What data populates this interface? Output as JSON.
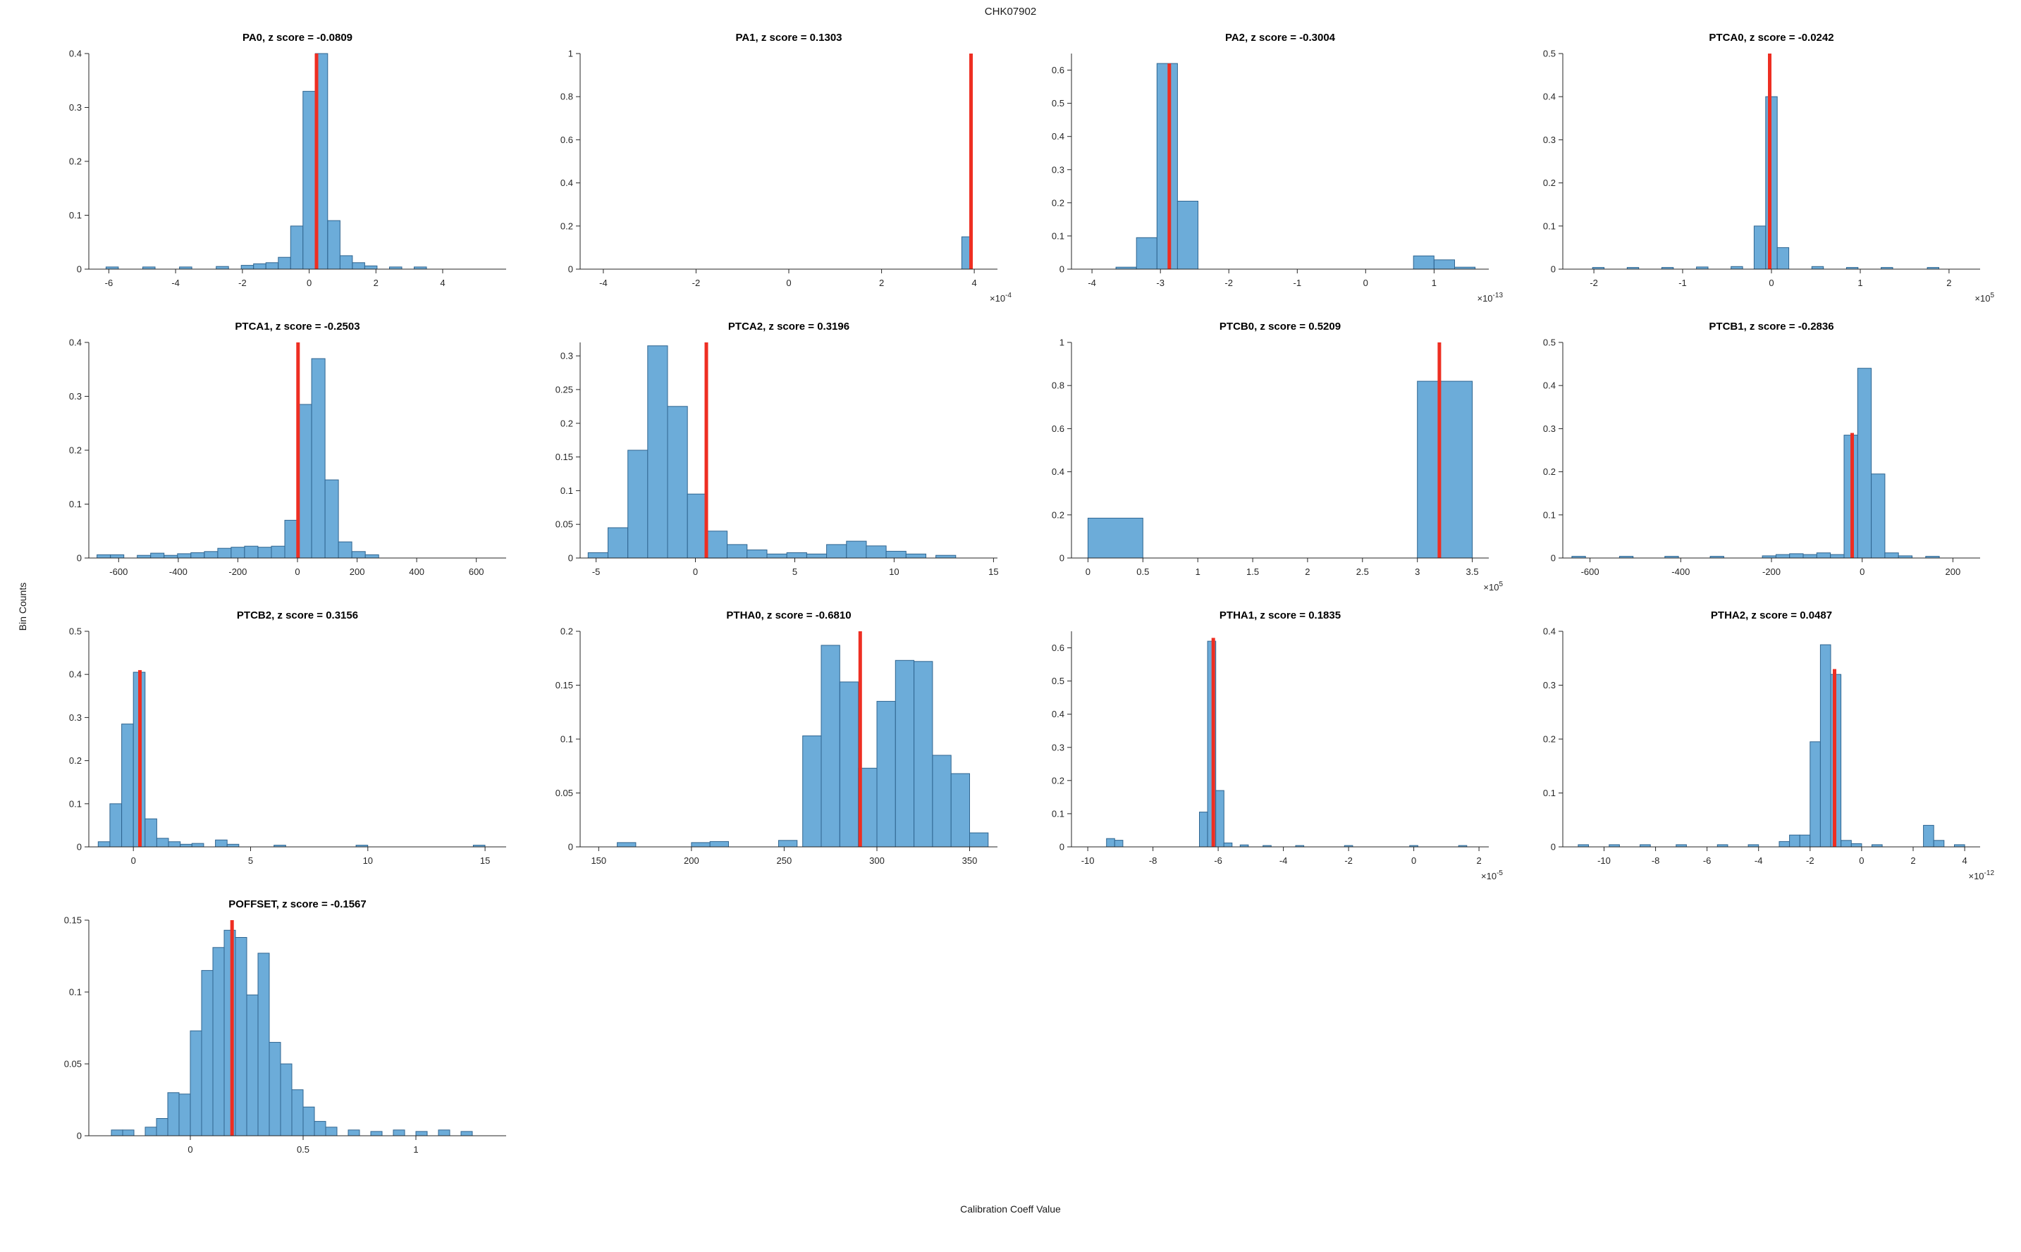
{
  "figure": {
    "title": "CHK07902",
    "xlabel": "Calibration Coeff Value",
    "ylabel": "Bin Counts"
  },
  "colors": {
    "bar_fill": "#6cacd9",
    "bar_edge": "#2f6590",
    "marker": "#ee2e22",
    "axis": "#262626"
  },
  "chart_data": [
    {
      "id": "PA0",
      "type": "bar",
      "title": "PA0, z score = -0.0809",
      "xlim": [
        -6.6,
        5.9
      ],
      "ylim": [
        0,
        0.4
      ],
      "xticks": [
        -6,
        -4,
        -2,
        0,
        2,
        4
      ],
      "yticks": [
        0,
        0.1,
        0.2,
        0.3,
        0.4
      ],
      "x_exponent": null,
      "bin_width": 0.37,
      "bars": [
        [
          -5.9,
          0.004
        ],
        [
          -4.8,
          0.004
        ],
        [
          -3.7,
          0.004
        ],
        [
          -2.6,
          0.005
        ],
        [
          -1.85,
          0.007
        ],
        [
          -1.48,
          0.01
        ],
        [
          -1.11,
          0.012
        ],
        [
          -0.74,
          0.022
        ],
        [
          -0.37,
          0.08
        ],
        [
          0,
          0.33
        ],
        [
          0.37,
          0.4
        ],
        [
          0.74,
          0.09
        ],
        [
          1.11,
          0.025
        ],
        [
          1.48,
          0.012
        ],
        [
          1.85,
          0.006
        ],
        [
          2.59,
          0.004
        ],
        [
          3.33,
          0.004
        ]
      ],
      "red_line": {
        "x": 0.22,
        "top": 0.4
      }
    },
    {
      "id": "PA1",
      "type": "bar",
      "title": "PA1, z score = 0.1303",
      "xlim": [
        -4.5,
        4.5
      ],
      "ylim": [
        0,
        1
      ],
      "xticks": [
        -4,
        -2,
        0,
        2,
        4
      ],
      "yticks": [
        0,
        0.2,
        0.4,
        0.6,
        0.8,
        1
      ],
      "x_exponent": -4,
      "bin_width": 0.18,
      "bars": [
        [
          3.82,
          0.15
        ]
      ],
      "red_line": {
        "x": 3.93,
        "top": 1.0
      }
    },
    {
      "id": "PA2",
      "type": "bar",
      "title": "PA2, z score = -0.3004",
      "xlim": [
        -4.3,
        1.8
      ],
      "ylim": [
        0,
        0.65
      ],
      "xticks": [
        -4,
        -3,
        -2,
        -1,
        0,
        1
      ],
      "yticks": [
        0,
        0.1,
        0.2,
        0.3,
        0.4,
        0.5,
        0.6
      ],
      "x_exponent": -13,
      "bin_width": 0.3,
      "bars": [
        [
          -3.5,
          0.006
        ],
        [
          -3.2,
          0.095
        ],
        [
          -2.9,
          0.62
        ],
        [
          -2.6,
          0.205
        ],
        [
          0.85,
          0.04
        ],
        [
          1.15,
          0.028
        ],
        [
          1.45,
          0.006
        ]
      ],
      "red_line": {
        "x": -2.87,
        "top": 0.62
      }
    },
    {
      "id": "PTCA0",
      "type": "bar",
      "title": "PTCA0, z score = -0.0242",
      "xlim": [
        -2.35,
        2.35
      ],
      "ylim": [
        0,
        0.5
      ],
      "xticks": [
        -2,
        -1,
        0,
        1,
        2
      ],
      "yticks": [
        0,
        0.1,
        0.2,
        0.3,
        0.4,
        0.5
      ],
      "x_exponent": 5,
      "bin_width": 0.13,
      "bars": [
        [
          -1.95,
          0.004
        ],
        [
          -1.56,
          0.004
        ],
        [
          -1.17,
          0.004
        ],
        [
          -0.78,
          0.005
        ],
        [
          -0.39,
          0.006
        ],
        [
          -0.13,
          0.1
        ],
        [
          0,
          0.4
        ],
        [
          0.13,
          0.05
        ],
        [
          0.52,
          0.006
        ],
        [
          0.91,
          0.004
        ],
        [
          1.3,
          0.004
        ],
        [
          1.82,
          0.004
        ]
      ],
      "red_line": {
        "x": -0.02,
        "top": 0.5
      }
    },
    {
      "id": "PTCA1",
      "type": "bar",
      "title": "PTCA1, z score = -0.2503",
      "xlim": [
        -700,
        700
      ],
      "ylim": [
        0,
        0.4
      ],
      "xticks": [
        -600,
        -400,
        -200,
        0,
        200,
        400,
        600
      ],
      "yticks": [
        0,
        0.1,
        0.2,
        0.3,
        0.4
      ],
      "x_exponent": null,
      "bin_width": 45,
      "bars": [
        [
          -650,
          0.006
        ],
        [
          -605,
          0.006
        ],
        [
          -515,
          0.005
        ],
        [
          -470,
          0.009
        ],
        [
          -425,
          0.005
        ],
        [
          -380,
          0.008
        ],
        [
          -335,
          0.01
        ],
        [
          -290,
          0.012
        ],
        [
          -245,
          0.018
        ],
        [
          -200,
          0.02
        ],
        [
          -155,
          0.022
        ],
        [
          -110,
          0.02
        ],
        [
          -65,
          0.022
        ],
        [
          -20,
          0.07
        ],
        [
          25,
          0.285
        ],
        [
          70,
          0.37
        ],
        [
          115,
          0.145
        ],
        [
          160,
          0.03
        ],
        [
          205,
          0.012
        ],
        [
          250,
          0.006
        ]
      ],
      "red_line": {
        "x": 2,
        "top": 0.4
      }
    },
    {
      "id": "PTCA2",
      "type": "bar",
      "title": "PTCA2, z score = 0.3196",
      "xlim": [
        -5.8,
        15.2
      ],
      "ylim": [
        0,
        0.32
      ],
      "xticks": [
        -5,
        0,
        5,
        10,
        15
      ],
      "yticks": [
        0,
        0.05,
        0.1,
        0.15,
        0.2,
        0.25,
        0.3
      ],
      "x_exponent": null,
      "bin_width": 1,
      "bars": [
        [
          -4.9,
          0.008
        ],
        [
          -3.9,
          0.045
        ],
        [
          -2.9,
          0.16
        ],
        [
          -1.9,
          0.315
        ],
        [
          -0.9,
          0.225
        ],
        [
          0.1,
          0.095
        ],
        [
          1.1,
          0.04
        ],
        [
          2.1,
          0.02
        ],
        [
          3.1,
          0.012
        ],
        [
          4.1,
          0.006
        ],
        [
          5.1,
          0.008
        ],
        [
          6.1,
          0.006
        ],
        [
          7.1,
          0.02
        ],
        [
          8.1,
          0.025
        ],
        [
          9.1,
          0.018
        ],
        [
          10.1,
          0.01
        ],
        [
          11.1,
          0.006
        ],
        [
          12.6,
          0.004
        ]
      ],
      "red_line": {
        "x": 0.55,
        "top": 0.32
      }
    },
    {
      "id": "PTCB0",
      "type": "bar",
      "title": "PTCB0, z score = 0.5209",
      "xlim": [
        -0.15,
        3.65
      ],
      "ylim": [
        0,
        1
      ],
      "xticks": [
        0,
        0.5,
        1,
        1.5,
        2,
        2.5,
        3,
        3.5
      ],
      "yticks": [
        0,
        0.2,
        0.4,
        0.6,
        0.8,
        1
      ],
      "x_exponent": 5,
      "bin_width": 0.5,
      "bars": [
        [
          0.25,
          0.185
        ],
        [
          3.25,
          0.82
        ]
      ],
      "red_line": {
        "x": 3.2,
        "top": 1.0
      }
    },
    {
      "id": "PTCB1",
      "type": "bar",
      "title": "PTCB1, z score = -0.2836",
      "xlim": [
        -660,
        260
      ],
      "ylim": [
        0,
        0.5
      ],
      "xticks": [
        -600,
        -400,
        -200,
        0,
        200
      ],
      "yticks": [
        0,
        0.1,
        0.2,
        0.3,
        0.4,
        0.5
      ],
      "x_exponent": null,
      "bin_width": 30,
      "bars": [
        [
          -625,
          0.004
        ],
        [
          -520,
          0.004
        ],
        [
          -420,
          0.004
        ],
        [
          -320,
          0.004
        ],
        [
          -205,
          0.005
        ],
        [
          -175,
          0.008
        ],
        [
          -145,
          0.01
        ],
        [
          -115,
          0.008
        ],
        [
          -85,
          0.012
        ],
        [
          -55,
          0.008
        ],
        [
          -25,
          0.285
        ],
        [
          5,
          0.44
        ],
        [
          35,
          0.195
        ],
        [
          65,
          0.012
        ],
        [
          95,
          0.005
        ],
        [
          155,
          0.004
        ]
      ],
      "red_line": {
        "x": -22,
        "top": 0.29
      }
    },
    {
      "id": "PTCB2",
      "type": "bar",
      "title": "PTCB2, z score = 0.3156",
      "xlim": [
        -1.9,
        15.9
      ],
      "ylim": [
        0,
        0.5
      ],
      "xticks": [
        0,
        5,
        10,
        15
      ],
      "yticks": [
        0,
        0.1,
        0.2,
        0.3,
        0.4,
        0.5
      ],
      "x_exponent": null,
      "bin_width": 0.5,
      "bars": [
        [
          -1.25,
          0.012
        ],
        [
          -0.75,
          0.1
        ],
        [
          -0.25,
          0.285
        ],
        [
          0.25,
          0.405
        ],
        [
          0.75,
          0.065
        ],
        [
          1.25,
          0.02
        ],
        [
          1.75,
          0.012
        ],
        [
          2.25,
          0.006
        ],
        [
          2.75,
          0.008
        ],
        [
          3.75,
          0.016
        ],
        [
          4.25,
          0.006
        ],
        [
          6.25,
          0.004
        ],
        [
          9.75,
          0.004
        ],
        [
          14.75,
          0.004
        ]
      ],
      "red_line": {
        "x": 0.28,
        "top": 0.41
      }
    },
    {
      "id": "PTHA0",
      "type": "bar",
      "title": "PTHA0, z score = -0.6810",
      "xlim": [
        140,
        365
      ],
      "ylim": [
        0,
        0.2
      ],
      "xticks": [
        150,
        200,
        250,
        300,
        350
      ],
      "yticks": [
        0,
        0.05,
        0.1,
        0.15,
        0.2
      ],
      "x_exponent": null,
      "bin_width": 10,
      "bars": [
        [
          165,
          0.004
        ],
        [
          205,
          0.004
        ],
        [
          215,
          0.005
        ],
        [
          252,
          0.006
        ],
        [
          265,
          0.103
        ],
        [
          275,
          0.187
        ],
        [
          285,
          0.153
        ],
        [
          295,
          0.073
        ],
        [
          305,
          0.135
        ],
        [
          315,
          0.173
        ],
        [
          325,
          0.172
        ],
        [
          335,
          0.085
        ],
        [
          345,
          0.068
        ],
        [
          355,
          0.013
        ]
      ],
      "red_line": {
        "x": 291,
        "top": 0.2
      }
    },
    {
      "id": "PTHA1",
      "type": "bar",
      "title": "PTHA1, z score = 0.1835",
      "xlim": [
        -10.5,
        2.3
      ],
      "ylim": [
        0,
        0.65
      ],
      "xticks": [
        -10,
        -8,
        -6,
        -4,
        -2,
        0,
        2
      ],
      "yticks": [
        0,
        0.1,
        0.2,
        0.3,
        0.4,
        0.5,
        0.6
      ],
      "x_exponent": -5,
      "bin_width": 0.25,
      "bars": [
        [
          -9.3,
          0.025
        ],
        [
          -9.05,
          0.02
        ],
        [
          -6.45,
          0.105
        ],
        [
          -6.2,
          0.62
        ],
        [
          -5.95,
          0.17
        ],
        [
          -5.7,
          0.012
        ],
        [
          -5.2,
          0.006
        ],
        [
          -4.5,
          0.004
        ],
        [
          -3.5,
          0.004
        ],
        [
          -2,
          0.004
        ],
        [
          0,
          0.004
        ],
        [
          1.5,
          0.004
        ]
      ],
      "red_line": {
        "x": -6.15,
        "top": 0.63
      }
    },
    {
      "id": "PTHA2",
      "type": "bar",
      "title": "PTHA2, z score = 0.0487",
      "xlim": [
        -11.6,
        4.6
      ],
      "ylim": [
        0,
        0.4
      ],
      "xticks": [
        -10,
        -8,
        -6,
        -4,
        -2,
        0,
        2,
        4
      ],
      "yticks": [
        0,
        0.1,
        0.2,
        0.3,
        0.4
      ],
      "x_exponent": -12,
      "bin_width": 0.4,
      "bars": [
        [
          -10.8,
          0.004
        ],
        [
          -9.6,
          0.004
        ],
        [
          -8.4,
          0.004
        ],
        [
          -7,
          0.004
        ],
        [
          -5.4,
          0.004
        ],
        [
          -4.2,
          0.004
        ],
        [
          -3,
          0.01
        ],
        [
          -2.6,
          0.022
        ],
        [
          -2.2,
          0.022
        ],
        [
          -1.8,
          0.195
        ],
        [
          -1.4,
          0.375
        ],
        [
          -1,
          0.32
        ],
        [
          -0.6,
          0.012
        ],
        [
          -0.2,
          0.006
        ],
        [
          0.6,
          0.004
        ],
        [
          2.6,
          0.04
        ],
        [
          3,
          0.012
        ],
        [
          3.8,
          0.004
        ]
      ],
      "red_line": {
        "x": -1.05,
        "top": 0.33
      }
    },
    {
      "id": "POFFSET",
      "type": "bar",
      "title": "POFFSET, z score = -0.1567",
      "xlim": [
        -0.45,
        1.4
      ],
      "ylim": [
        0,
        0.15
      ],
      "xticks": [
        0,
        0.5,
        1
      ],
      "yticks": [
        0,
        0.05,
        0.1,
        0.15
      ],
      "x_exponent": null,
      "bin_width": 0.05,
      "bars": [
        [
          -0.325,
          0.004
        ],
        [
          -0.275,
          0.004
        ],
        [
          -0.175,
          0.006
        ],
        [
          -0.125,
          0.012
        ],
        [
          -0.075,
          0.03
        ],
        [
          -0.025,
          0.029
        ],
        [
          0.025,
          0.073
        ],
        [
          0.075,
          0.115
        ],
        [
          0.125,
          0.131
        ],
        [
          0.175,
          0.143
        ],
        [
          0.225,
          0.138
        ],
        [
          0.275,
          0.098
        ],
        [
          0.325,
          0.127
        ],
        [
          0.375,
          0.065
        ],
        [
          0.425,
          0.05
        ],
        [
          0.475,
          0.032
        ],
        [
          0.525,
          0.02
        ],
        [
          0.575,
          0.01
        ],
        [
          0.625,
          0.006
        ],
        [
          0.725,
          0.004
        ],
        [
          0.825,
          0.003
        ],
        [
          0.925,
          0.004
        ],
        [
          1.025,
          0.003
        ],
        [
          1.125,
          0.004
        ],
        [
          1.225,
          0.003
        ]
      ],
      "red_line": {
        "x": 0.185,
        "top": 0.15
      }
    }
  ]
}
